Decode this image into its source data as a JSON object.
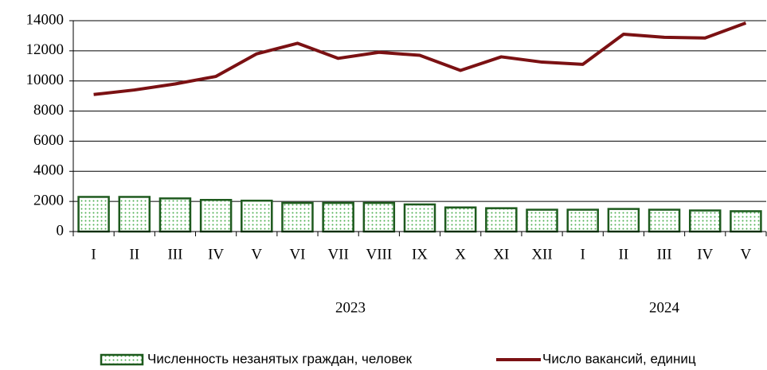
{
  "chart_data": {
    "type": "bar_line",
    "categories": [
      "I",
      "II",
      "III",
      "IV",
      "V",
      "VI",
      "VII",
      "VIII",
      "IX",
      "X",
      "XI",
      "XII",
      "I",
      "II",
      "III",
      "IV",
      "V"
    ],
    "groups": [
      "2023",
      "2024"
    ],
    "series": [
      {
        "name": "Численность незанятых граждан, человек",
        "type": "bar",
        "color": "#1e5a1e",
        "fill": "#4caf50",
        "values": [
          2300,
          2300,
          2200,
          2100,
          2050,
          1900,
          1900,
          1900,
          1800,
          1600,
          1550,
          1450,
          1450,
          1500,
          1450,
          1400,
          1350
        ]
      },
      {
        "name": "Число вакансий, единиц",
        "type": "line",
        "color": "#7b1113",
        "values": [
          9100,
          9400,
          9800,
          10300,
          11800,
          12500,
          11500,
          11900,
          11700,
          10700,
          11600,
          11250,
          11100,
          13100,
          12900,
          12850,
          13850
        ]
      }
    ],
    "ylim": [
      0,
      14000
    ],
    "yticks": [
      0,
      2000,
      4000,
      6000,
      8000,
      10000,
      12000,
      14000
    ],
    "grid": true,
    "legend": "bottom"
  }
}
